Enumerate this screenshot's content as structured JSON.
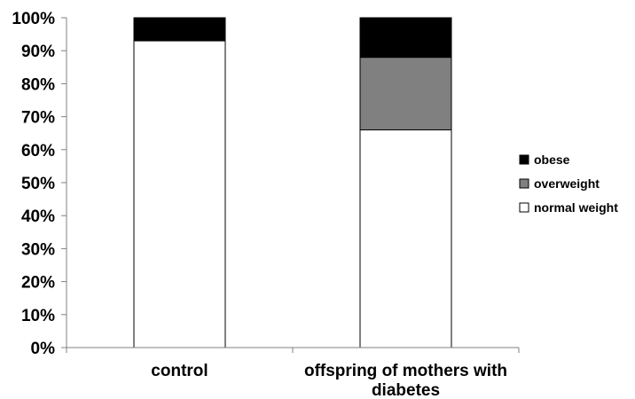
{
  "chart_data": {
    "type": "bar",
    "stacked": true,
    "percent": true,
    "categories": [
      [
        "control"
      ],
      [
        "offspring of mothers with",
        "diabetes"
      ]
    ],
    "series": [
      {
        "name": "normal weight",
        "values": [
          93,
          66
        ],
        "color": "#ffffff"
      },
      {
        "name": "overweight",
        "values": [
          0,
          22
        ],
        "color": "#808080"
      },
      {
        "name": "obese",
        "values": [
          7,
          12
        ],
        "color": "#000000"
      }
    ],
    "legend_order": [
      "obese",
      "overweight",
      "normal weight"
    ],
    "y_ticks": [
      "0%",
      "10%",
      "20%",
      "30%",
      "40%",
      "50%",
      "60%",
      "70%",
      "80%",
      "90%",
      "100%"
    ],
    "ylim": [
      0,
      100
    ],
    "grid": false,
    "legend_position": "right"
  }
}
